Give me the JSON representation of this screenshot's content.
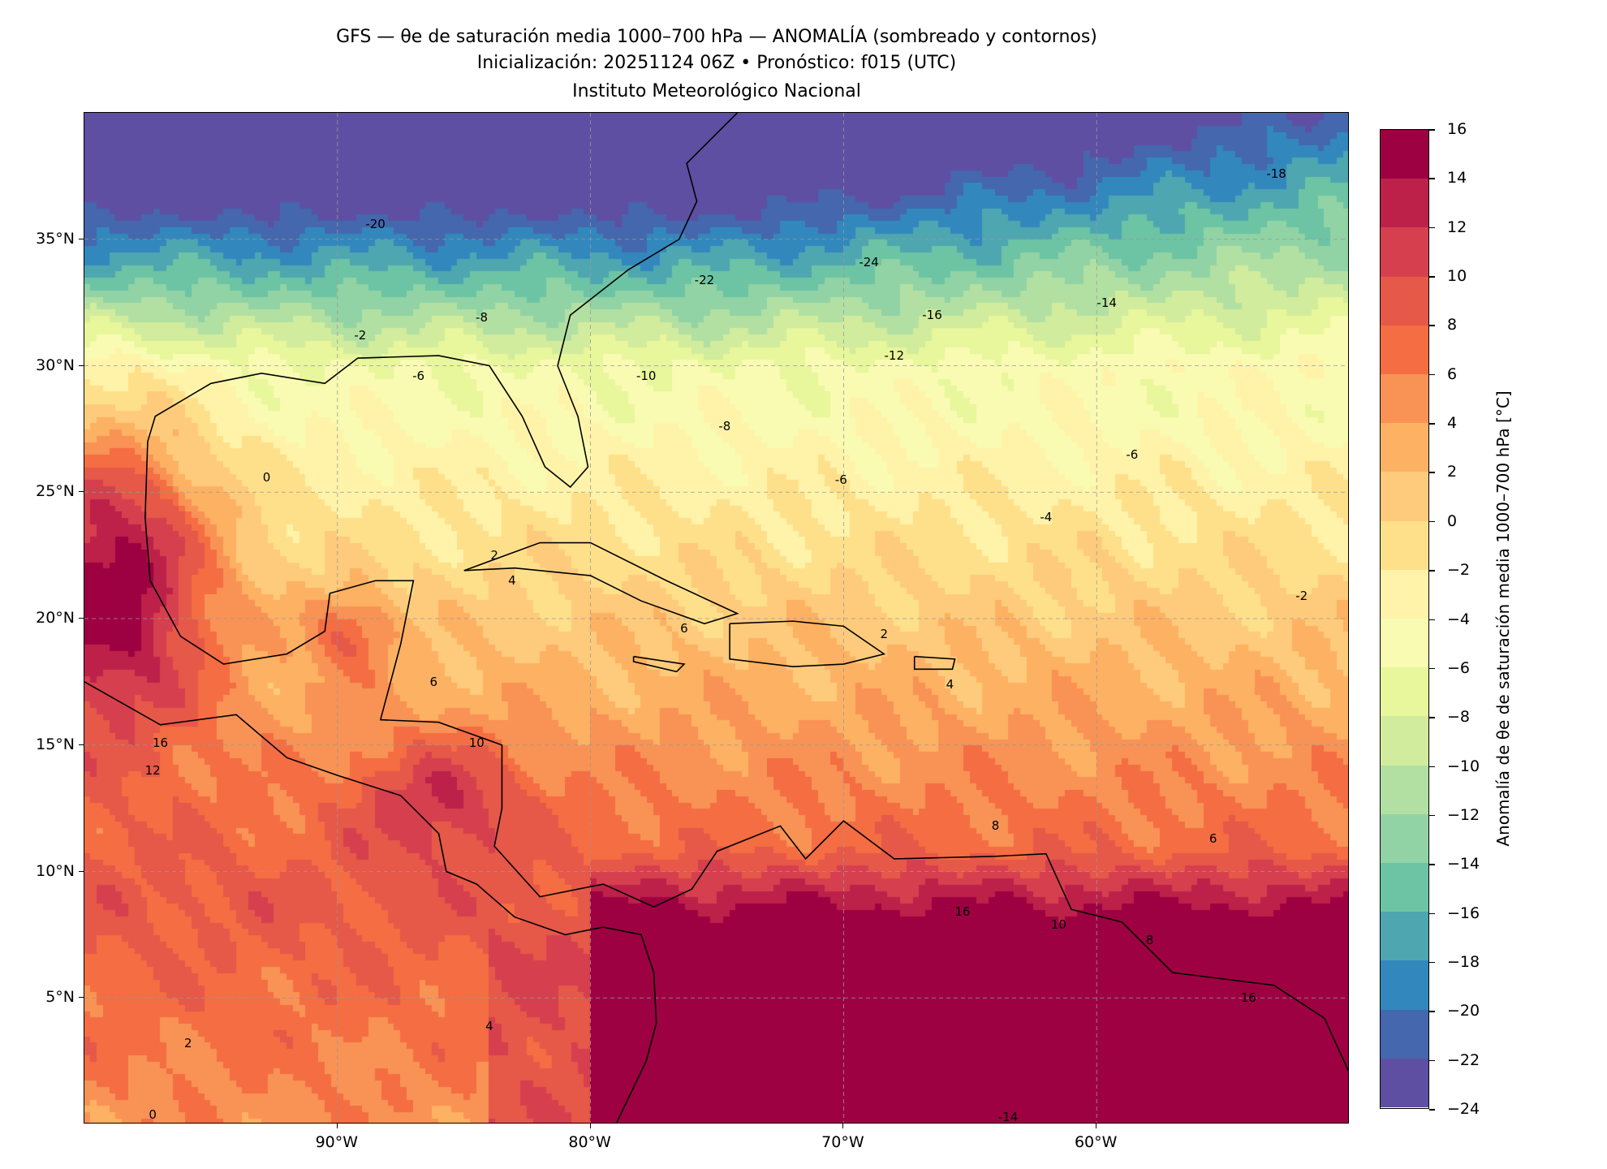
{
  "header": {
    "title": "GFS — θe de saturación media 1000–700 hPa — ANOMALÍA (sombreado y contornos)",
    "subtitle": "Inicialización: 20251124 06Z   •   Pronóstico: f015 (UTC)",
    "institution": "Instituto Meteorológico Nacional"
  },
  "map": {
    "extent": {
      "lon": [
        -100,
        -50
      ],
      "lat": [
        0,
        40
      ]
    },
    "lat_ticks": [
      {
        "value": 5,
        "label": "5°N"
      },
      {
        "value": 10,
        "label": "10°N"
      },
      {
        "value": 15,
        "label": "15°N"
      },
      {
        "value": 20,
        "label": "20°N"
      },
      {
        "value": 25,
        "label": "25°N"
      },
      {
        "value": 30,
        "label": "30°N"
      },
      {
        "value": 35,
        "label": "35°N"
      }
    ],
    "lon_ticks": [
      {
        "value": -90,
        "label": "90°W"
      },
      {
        "value": -80,
        "label": "80°W"
      },
      {
        "value": -70,
        "label": "70°W"
      },
      {
        "value": -60,
        "label": "60°W"
      }
    ],
    "contour_labels": [
      {
        "text": "-24",
        "lon": -69,
        "lat": 34.1
      },
      {
        "text": "-22",
        "lon": -75.5,
        "lat": 33.4
      },
      {
        "text": "-20",
        "lon": -88.5,
        "lat": 35.6
      },
      {
        "text": "-18",
        "lon": -52.9,
        "lat": 37.6
      },
      {
        "text": "-16",
        "lon": -66.5,
        "lat": 32.0
      },
      {
        "text": "-14",
        "lon": -59.6,
        "lat": 32.5
      },
      {
        "text": "-12",
        "lon": -68,
        "lat": 30.4
      },
      {
        "text": "-10",
        "lon": -77.8,
        "lat": 29.6
      },
      {
        "text": "-8",
        "lon": -84.3,
        "lat": 31.9
      },
      {
        "text": "-8",
        "lon": -74.7,
        "lat": 27.6
      },
      {
        "text": "-6",
        "lon": -86.8,
        "lat": 29.6
      },
      {
        "text": "-6",
        "lon": -58.6,
        "lat": 26.5
      },
      {
        "text": "-6",
        "lon": -70.1,
        "lat": 25.5
      },
      {
        "text": "-4",
        "lon": -62,
        "lat": 24.0
      },
      {
        "text": "-2",
        "lon": -51.9,
        "lat": 20.9
      },
      {
        "text": "-2",
        "lon": -89.1,
        "lat": 31.2
      },
      {
        "text": "0",
        "lon": -92.8,
        "lat": 25.6
      },
      {
        "text": "2",
        "lon": -83.8,
        "lat": 22.5
      },
      {
        "text": "2",
        "lon": -68.4,
        "lat": 19.4
      },
      {
        "text": "4",
        "lon": -83.1,
        "lat": 21.5
      },
      {
        "text": "4",
        "lon": -65.8,
        "lat": 17.4
      },
      {
        "text": "6",
        "lon": -86.2,
        "lat": 17.5
      },
      {
        "text": "6",
        "lon": -76.3,
        "lat": 19.6
      },
      {
        "text": "6",
        "lon": -55.4,
        "lat": 11.3
      },
      {
        "text": "8",
        "lon": -64,
        "lat": 11.8
      },
      {
        "text": "8",
        "lon": -57.9,
        "lat": 7.3
      },
      {
        "text": "10",
        "lon": -84.5,
        "lat": 15.1
      },
      {
        "text": "10",
        "lon": -61.5,
        "lat": 7.9
      },
      {
        "text": "12",
        "lon": -97.3,
        "lat": 14.0
      },
      {
        "text": "16",
        "lon": -97,
        "lat": 15.1
      },
      {
        "text": "16",
        "lon": -65.3,
        "lat": 8.4
      },
      {
        "text": "16",
        "lon": -54,
        "lat": 5.0
      },
      {
        "text": "4",
        "lon": -84,
        "lat": 3.9
      },
      {
        "text": "2",
        "lon": -95.9,
        "lat": 3.2
      },
      {
        "text": "0",
        "lon": -97.3,
        "lat": 0.4
      },
      {
        "text": "-14",
        "lon": -63.5,
        "lat": 0.3
      }
    ]
  },
  "colorbar": {
    "label": "Anomalía de θe de saturación media 1000–700 hPa [°C]",
    "ticks": [
      "16",
      "14",
      "12",
      "10",
      "8",
      "6",
      "4",
      "2",
      "0",
      "−2",
      "−4",
      "−6",
      "−8",
      "−10",
      "−12",
      "−14",
      "−16",
      "−18",
      "−20",
      "−22",
      "−24"
    ],
    "levels": [
      16,
      14,
      12,
      10,
      8,
      6,
      4,
      2,
      0,
      -2,
      -4,
      -6,
      -8,
      -10,
      -12,
      -14,
      -16,
      -18,
      -20,
      -22,
      -24
    ],
    "colors": [
      "#9e0142",
      "#bd2149",
      "#d6404e",
      "#e65848",
      "#f46d43",
      "#f99355",
      "#fdb163",
      "#fdcb7b",
      "#fee08b",
      "#fff3aa",
      "#f8fbb1",
      "#e8f69c",
      "#d1ec9c",
      "#b2e0a2",
      "#91d3a4",
      "#6cc4a5",
      "#4ea6b1",
      "#3288bd",
      "#4467ae",
      "#5e4fa2"
    ]
  }
}
